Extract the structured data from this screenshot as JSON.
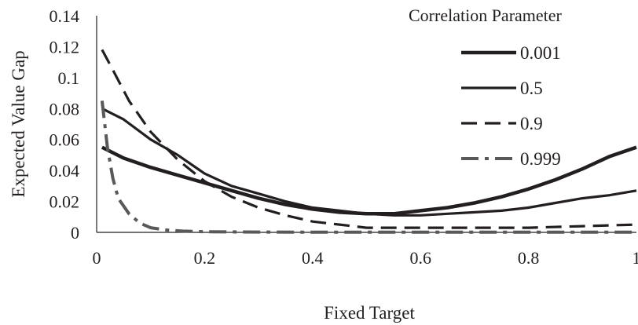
{
  "chart_data": {
    "type": "line",
    "title": "",
    "xlabel": "Fixed Target",
    "ylabel": "Expected Value Gap",
    "xlim": [
      0,
      1
    ],
    "ylim": [
      0,
      0.14
    ],
    "x_ticks": [
      "0",
      "0.2",
      "0.4",
      "0.6",
      "0.8",
      "1"
    ],
    "y_ticks": [
      "0",
      "0.02",
      "0.04",
      "0.06",
      "0.08",
      "0.1",
      "0.12",
      "0.14"
    ],
    "grid": false,
    "legend": {
      "title": "Correlation Parameter",
      "position": "top-right"
    },
    "series": [
      {
        "name": "0.001",
        "style": "solid",
        "weight": "thick",
        "color": "#231f20",
        "x": [
          0.01,
          0.05,
          0.1,
          0.15,
          0.2,
          0.25,
          0.3,
          0.35,
          0.4,
          0.45,
          0.5,
          0.55,
          0.6,
          0.65,
          0.7,
          0.75,
          0.8,
          0.85,
          0.9,
          0.95,
          1.0
        ],
        "y": [
          0.055,
          0.048,
          0.042,
          0.037,
          0.032,
          0.027,
          0.022,
          0.018,
          0.015,
          0.013,
          0.012,
          0.012,
          0.014,
          0.016,
          0.019,
          0.023,
          0.028,
          0.034,
          0.041,
          0.049,
          0.055
        ]
      },
      {
        "name": "0.5",
        "style": "solid",
        "weight": "normal",
        "color": "#231f20",
        "x": [
          0.01,
          0.05,
          0.1,
          0.15,
          0.2,
          0.25,
          0.3,
          0.35,
          0.4,
          0.45,
          0.5,
          0.55,
          0.6,
          0.65,
          0.7,
          0.75,
          0.8,
          0.85,
          0.9,
          0.95,
          1.0
        ],
        "y": [
          0.08,
          0.073,
          0.06,
          0.05,
          0.038,
          0.03,
          0.025,
          0.02,
          0.016,
          0.014,
          0.012,
          0.011,
          0.011,
          0.012,
          0.013,
          0.014,
          0.016,
          0.019,
          0.022,
          0.024,
          0.027
        ]
      },
      {
        "name": "0.9",
        "style": "dashed",
        "weight": "normal",
        "color": "#231f20",
        "x": [
          0.01,
          0.03,
          0.06,
          0.1,
          0.15,
          0.2,
          0.25,
          0.3,
          0.35,
          0.4,
          0.45,
          0.5,
          0.6,
          0.7,
          0.8,
          0.9,
          1.0
        ],
        "y": [
          0.118,
          0.105,
          0.085,
          0.065,
          0.047,
          0.033,
          0.023,
          0.016,
          0.011,
          0.007,
          0.005,
          0.003,
          0.003,
          0.003,
          0.003,
          0.004,
          0.005
        ]
      },
      {
        "name": "0.999",
        "style": "dash-dot",
        "weight": "normal",
        "color": "#595959",
        "x": [
          0.01,
          0.02,
          0.03,
          0.04,
          0.06,
          0.08,
          0.1,
          0.13,
          0.16,
          0.2,
          0.3,
          0.4,
          0.5,
          0.6,
          0.7,
          0.8,
          0.9,
          1.0
        ],
        "y": [
          0.085,
          0.055,
          0.035,
          0.022,
          0.012,
          0.006,
          0.003,
          0.0015,
          0.0008,
          0.0004,
          0.0002,
          0.0001,
          0.0001,
          0.0001,
          0.0001,
          0.0001,
          0.0001,
          0.0001
        ]
      }
    ]
  }
}
